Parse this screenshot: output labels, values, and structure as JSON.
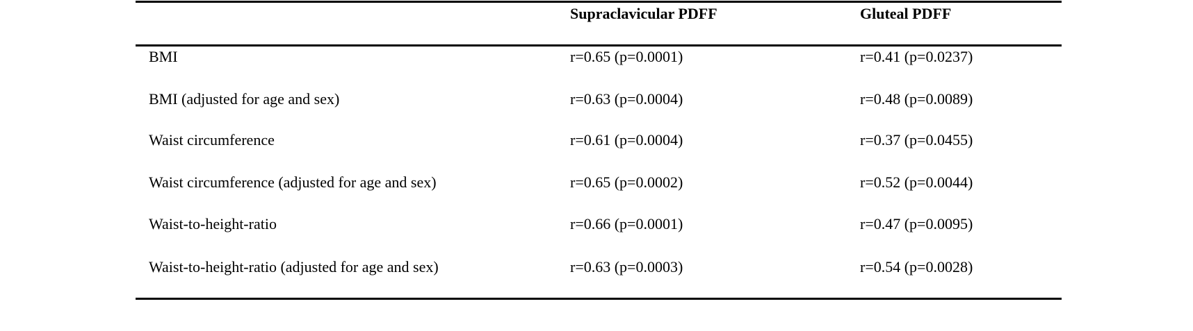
{
  "table": {
    "columns": [
      "Supraclavicular PDFF",
      "Gluteal PDFF"
    ],
    "rows": [
      [
        "BMI",
        "r=0.65 (p=0.0001)",
        "r=0.41 (p=0.0237)"
      ],
      [
        "BMI (adjusted for age and sex)",
        "r=0.63 (p=0.0004)",
        "r=0.48 (p=0.0089)"
      ],
      [
        "Waist circumference",
        "r=0.61 (p=0.0004)",
        "r=0.37 (p=0.0455)"
      ],
      [
        "Waist circumference (adjusted for age and sex)",
        "r=0.65 (p=0.0002)",
        "r=0.52 (p=0.0044)"
      ],
      [
        "Waist-to-height-ratio",
        "r=0.66 (p=0.0001)",
        "r=0.47 (p=0.0095)"
      ],
      [
        "Waist-to-height-ratio (adjusted for age and sex)",
        "r=0.63 (p=0.0003)",
        "r=0.54 (p=0.0028)"
      ]
    ]
  }
}
